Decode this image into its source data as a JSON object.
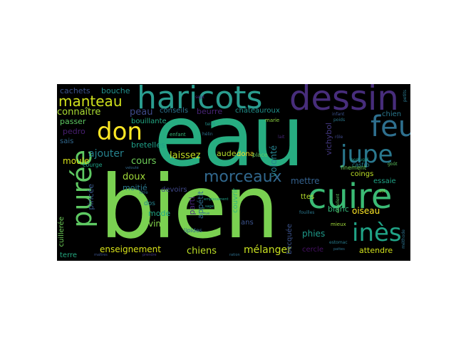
{
  "words": [
    {
      "text": "eau",
      "color": "#27ad81"
    },
    {
      "text": "bien",
      "color": "#7ad151"
    },
    {
      "text": "dessin",
      "color": "#472d7b"
    },
    {
      "text": "haricots",
      "color": "#2a9d8f"
    },
    {
      "text": "cuire",
      "color": "#3bbb75"
    },
    {
      "text": "feu",
      "color": "#2e6f8e"
    },
    {
      "text": "jupe",
      "color": "#2a788e"
    },
    {
      "text": "don",
      "color": "#fde725"
    },
    {
      "text": "purée",
      "color": "#5ec962"
    },
    {
      "text": "inès",
      "color": "#20a386"
    },
    {
      "text": "manteau",
      "color": "#d0e11c"
    },
    {
      "text": "morceaux",
      "color": "#31688e"
    },
    {
      "text": "connaître",
      "color": "#aadc32"
    },
    {
      "text": "peau",
      "color": "#3e4a89"
    },
    {
      "text": "cachets",
      "color": "#3b528b"
    },
    {
      "text": "bouche",
      "color": "#21918c"
    },
    {
      "text": "conseils",
      "color": "#2c728e"
    },
    {
      "text": "beurre",
      "color": "#482475"
    },
    {
      "text": "châteauroux",
      "color": "#21918c"
    },
    {
      "text": "passer",
      "color": "#5ec962"
    },
    {
      "text": "bouillante",
      "color": "#22a884"
    },
    {
      "text": "pedro",
      "color": "#481f70"
    },
    {
      "text": "sais",
      "color": "#31688e"
    },
    {
      "text": "enfant",
      "color": "#35b779"
    },
    {
      "text": "aude",
      "color": "#b5de2b"
    },
    {
      "text": "dona",
      "color": "#fde725"
    },
    {
      "text": "marie",
      "color": "#90d743"
    },
    {
      "text": "chien",
      "color": "#2a788e"
    },
    {
      "text": "ajouter",
      "color": "#26828e"
    },
    {
      "text": "bretelles",
      "color": "#1fa088"
    },
    {
      "text": "cours",
      "color": "#6ece58"
    },
    {
      "text": "laissez",
      "color": "#c2df23"
    },
    {
      "text": "moule",
      "color": "#d8e219"
    },
    {
      "text": "vichybol",
      "color": "#443983"
    },
    {
      "text": "volonté",
      "color": "#26828e"
    },
    {
      "text": "doux",
      "color": "#a0da39"
    },
    {
      "text": "mettre",
      "color": "#34618d"
    },
    {
      "text": "coings",
      "color": "#bddf26"
    },
    {
      "text": "essaie",
      "color": "#20a386"
    },
    {
      "text": "moitié",
      "color": "#2a788e"
    },
    {
      "text": "pincée",
      "color": "#38588c"
    },
    {
      "text": "courge",
      "color": "#1fa187"
    },
    {
      "text": "devoirs",
      "color": "#3f4788"
    },
    {
      "text": "ttes",
      "color": "#b5de2b"
    },
    {
      "text": "blanc",
      "color": "#35b779"
    },
    {
      "text": "oiseau",
      "color": "#fde725"
    },
    {
      "text": "mode",
      "color": "#22a884"
    },
    {
      "text": "vin",
      "color": "#84d44b"
    },
    {
      "text": "dos",
      "color": "#25848e"
    },
    {
      "text": "appétit",
      "color": "#2f6c8e"
    },
    {
      "text": "couvrir",
      "color": "#2fb47c"
    },
    {
      "text": "ans",
      "color": "#3b528b"
    },
    {
      "text": "phies",
      "color": "#1f9a8a"
    },
    {
      "text": "cuillerée",
      "color": "#6ece58"
    },
    {
      "text": "terre",
      "color": "#25ab82"
    },
    {
      "text": "enseignement",
      "color": "#d8e219"
    },
    {
      "text": "chiens",
      "color": "#bddf26"
    },
    {
      "text": "mélanger",
      "color": "#c8e020"
    },
    {
      "text": "becquée",
      "color": "#3b528b"
    },
    {
      "text": "cercle",
      "color": "#471164"
    },
    {
      "text": "attendre",
      "color": "#d0e11c"
    },
    {
      "text": "lipides",
      "color": "#31688e"
    },
    {
      "text": "parti",
      "color": "#482979"
    },
    {
      "text": "place",
      "color": "#5ec962"
    },
    {
      "text": "litre",
      "color": "#2c728e"
    },
    {
      "text": "sept",
      "color": "#482878"
    },
    {
      "text": "teint",
      "color": "#21918c"
    },
    {
      "text": "hélin",
      "color": "#2c728e"
    },
    {
      "text": "fouilles",
      "color": "#2a788e"
    },
    {
      "text": "mieux",
      "color": "#a0da39"
    },
    {
      "text": "infant",
      "color": "#3b528b"
    },
    {
      "text": "castro",
      "color": "#26828e"
    },
    {
      "text": "portugal",
      "color": "#1f9e89"
    },
    {
      "text": "finement",
      "color": "#6ece58"
    },
    {
      "text": "excellent",
      "color": "#5ec962"
    },
    {
      "text": "petits",
      "color": "#2a788e"
    },
    {
      "text": "maîtres",
      "color": "#3b528b"
    },
    {
      "text": "méthode",
      "color": "#2c728e"
    },
    {
      "text": "prendre",
      "color": "#443983"
    },
    {
      "text": "ration",
      "color": "#2e6f8e"
    },
    {
      "text": "emplacement",
      "color": "#1fa187"
    },
    {
      "text": "velouté",
      "color": "#31688e"
    },
    {
      "text": "estomac",
      "color": "#287d8e"
    },
    {
      "text": "pattes",
      "color": "#2c728e"
    },
    {
      "text": "goût",
      "color": "#5ec962"
    },
    {
      "text": "sol",
      "color": "#90d743"
    },
    {
      "text": "poids",
      "color": "#2a788e"
    },
    {
      "text": "rôle",
      "color": "#3e4989"
    },
    {
      "text": "lait",
      "color": "#482878"
    },
    {
      "text": "sage",
      "color": "#1f9a8a"
    },
    {
      "text": "rue",
      "color": "#31688e"
    }
  ]
}
